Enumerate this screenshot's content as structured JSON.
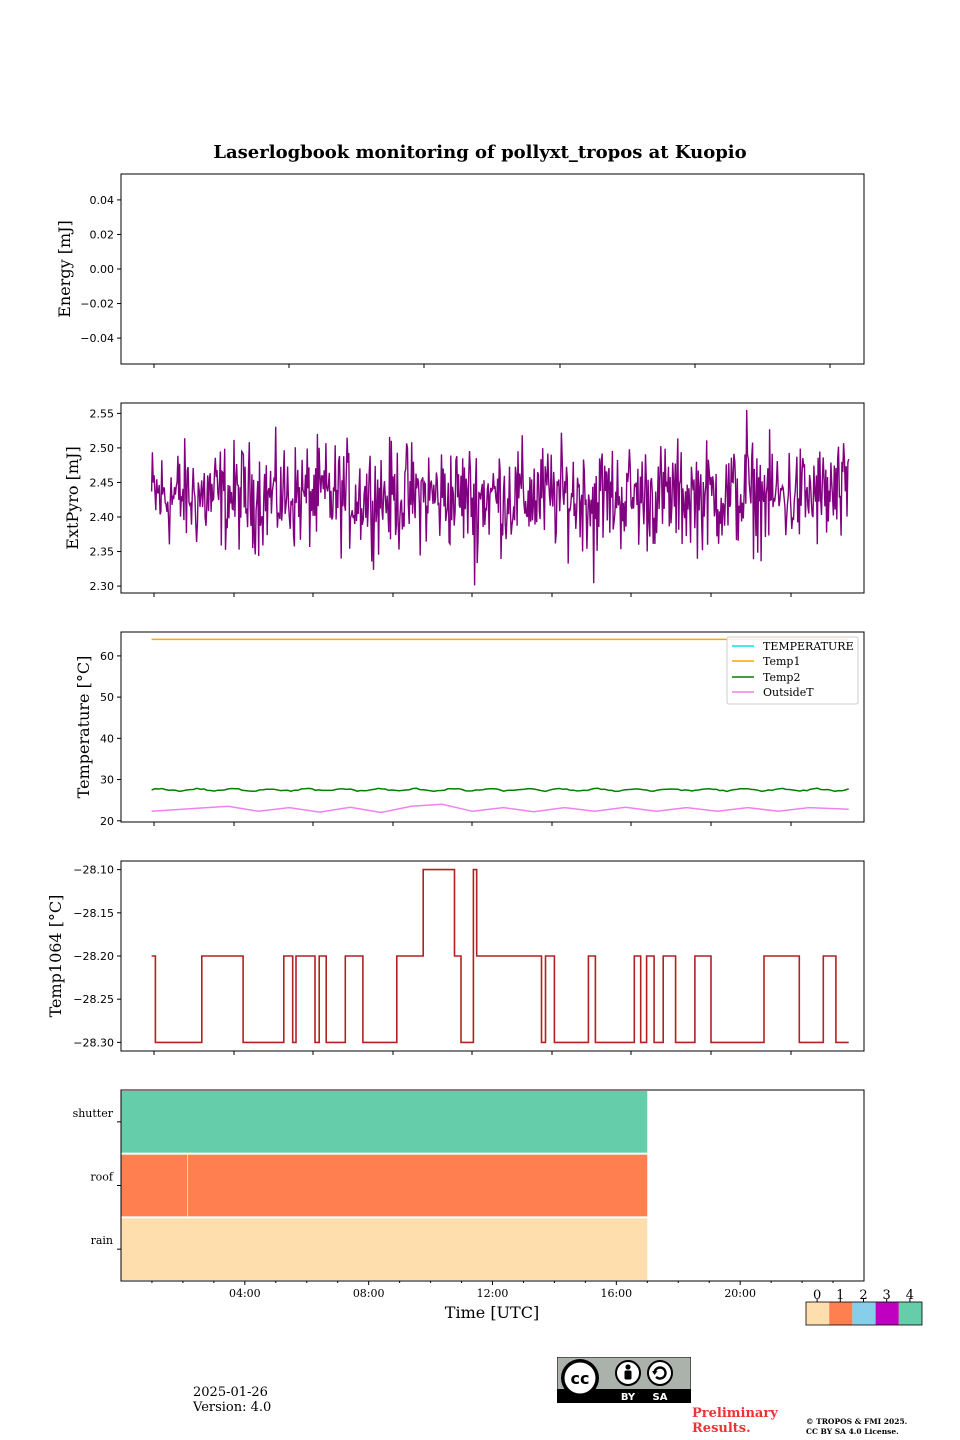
{
  "title": "Laserlogbook monitoring of pollyxt_tropos at Kuopio",
  "date": "2025-01-26",
  "version": "Version: 4.0",
  "preliminary": [
    "Preliminary",
    "Results."
  ],
  "copyright": [
    "© TROPOS & FMI 2025.",
    "CC BY SA 4.0 License."
  ],
  "license_badge": {
    "cc": "cc",
    "by": "BY",
    "sa": "SA"
  },
  "colors": {
    "extpyro": "#800080",
    "temperature": "#00e5e5",
    "temp1": "#ffa500",
    "temp2": "#008000",
    "outsideT": "#ee82ee",
    "temp1064": "#b22222",
    "prelim": "#ee3333"
  },
  "chart_data": [
    {
      "type": "line",
      "ylabel": "Energy [mJ]",
      "ylim": [
        -0.055,
        0.055
      ],
      "yticks": [
        -0.04,
        -0.02,
        0.0,
        0.02,
        0.04
      ],
      "ytick_labels": [
        "−0.04",
        "−0.02",
        "0.00",
        "0.02",
        "0.04"
      ],
      "series": []
    },
    {
      "type": "line",
      "ylabel": "ExtPyro [mJ]",
      "xlim": [
        -0.5,
        23.8
      ],
      "ylim": [
        2.29,
        2.565
      ],
      "yticks": [
        2.3,
        2.35,
        2.4,
        2.45,
        2.5,
        2.55
      ],
      "ytick_labels": [
        "2.30",
        "2.35",
        "2.40",
        "2.45",
        "2.50",
        "2.55"
      ],
      "series": [
        {
          "x_range_hours": [
            0.5,
            23.3
          ],
          "mean": 2.43,
          "min": 2.301,
          "max": 2.555,
          "color": "#800080"
        }
      ]
    },
    {
      "type": "line",
      "ylabel": "Temperature [°C]",
      "xlim": [
        -0.5,
        23.8
      ],
      "ylim": [
        19.7,
        65.8
      ],
      "yticks": [
        20,
        30,
        40,
        50,
        60
      ],
      "ytick_labels": [
        "20",
        "30",
        "40",
        "50",
        "60"
      ],
      "legend_position": "top-right",
      "series": [
        {
          "name": "TEMPERATURE",
          "color": "#00e5e5",
          "values": []
        },
        {
          "name": "Temp1",
          "color": "#ffa500",
          "x": [
            0.5,
            23.3
          ],
          "values": [
            64.0,
            64.0
          ]
        },
        {
          "name": "Temp2",
          "color": "#008000",
          "x": [
            0.5,
            23.3
          ],
          "values": [
            27.5,
            27.5
          ]
        },
        {
          "name": "OutsideT",
          "color": "#ee82ee",
          "x": [
            0.5,
            3.0,
            4.0,
            5.0,
            6.0,
            7.0,
            8.0,
            9.0,
            10.0,
            11.0,
            12.0,
            13.0,
            14.0,
            15.0,
            16.0,
            17.0,
            18.0,
            19.0,
            20.0,
            21.0,
            22.0,
            23.3
          ],
          "values": [
            22.3,
            23.5,
            22.3,
            23.2,
            22.1,
            23.3,
            22.0,
            23.5,
            24.0,
            22.3,
            23.2,
            22.2,
            23.2,
            22.3,
            23.3,
            22.3,
            23.2,
            22.3,
            23.2,
            22.3,
            23.2,
            22.8
          ]
        }
      ]
    },
    {
      "type": "line",
      "ylabel": "Temp1064 [°C]",
      "xlim": [
        -0.5,
        23.8
      ],
      "ylim": [
        -28.31,
        -28.09
      ],
      "yticks": [
        -28.3,
        -28.25,
        -28.2,
        -28.15,
        -28.1
      ],
      "ytick_labels": [
        "−28.30",
        "−28.25",
        "−28.20",
        "−28.15",
        "−28.10"
      ],
      "series": [
        {
          "name": "Temp1064",
          "color": "#b22222",
          "levels": [
            -28.3,
            -28.2,
            -28.1
          ]
        }
      ]
    },
    {
      "type": "heatmap",
      "rows": [
        "rain",
        "roof",
        "shutter"
      ],
      "row_values": [
        0,
        1,
        4
      ],
      "data_end_hour": 17.0,
      "xlim": [
        0,
        24
      ],
      "xticks": [
        4,
        8,
        12,
        16,
        20
      ],
      "xtick_labels": [
        "04:00",
        "08:00",
        "12:00",
        "16:00",
        "20:00"
      ],
      "xlabel": "Time [UTC]",
      "colorbar": {
        "labels": [
          "0",
          "1",
          "2",
          "3",
          "4"
        ],
        "colors": [
          "#ffdead",
          "#ff7f50",
          "#87ceeb",
          "#c000c0",
          "#66cdaa"
        ]
      }
    }
  ]
}
